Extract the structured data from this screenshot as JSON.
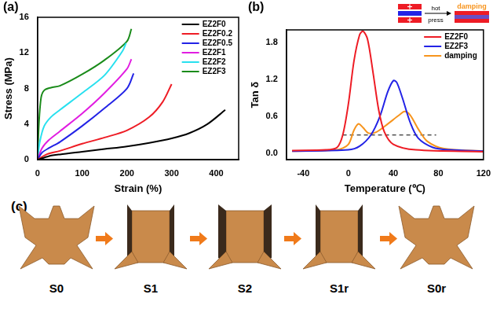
{
  "chart_data": [
    {
      "type": "line",
      "title": "(a)",
      "x_label": "Strain (%)",
      "y_label": "Stress (MPa)",
      "xlim": [
        0,
        450
      ],
      "xticks": [
        0,
        100,
        200,
        300,
        400
      ],
      "ylim": [
        0,
        16
      ],
      "yticks": [
        0,
        4,
        8,
        12,
        16
      ],
      "grid": false,
      "legend": "upper right",
      "series": [
        {
          "name": "EZ2F0",
          "color": "#000000",
          "x": [
            0,
            25,
            50,
            100,
            150,
            200,
            250,
            300,
            340,
            380,
            420
          ],
          "values": [
            0,
            0.4,
            0.6,
            0.9,
            1.2,
            1.5,
            1.9,
            2.4,
            3.0,
            4.0,
            5.6
          ]
        },
        {
          "name": "EZ2F0.2",
          "color": "#ee1c25",
          "x": [
            0,
            20,
            50,
            100,
            150,
            200,
            250,
            280,
            300
          ],
          "values": [
            0,
            0.6,
            1.0,
            1.8,
            2.5,
            3.3,
            4.8,
            6.5,
            8.5
          ]
        },
        {
          "name": "EZ2F0.5",
          "color": "#2323e6",
          "x": [
            0,
            10,
            25,
            50,
            100,
            150,
            200,
            215
          ],
          "values": [
            0,
            0.8,
            1.3,
            2.0,
            3.8,
            5.8,
            8.0,
            9.7
          ]
        },
        {
          "name": "EZ2F1",
          "color": "#e11de1",
          "x": [
            0,
            10,
            25,
            50,
            100,
            150,
            200,
            210
          ],
          "values": [
            0,
            1.3,
            2.2,
            3.2,
            5.2,
            7.5,
            10.2,
            11.3
          ]
        },
        {
          "name": "EZ2F2",
          "color": "#28e0ef",
          "x": [
            0,
            5,
            15,
            30,
            50,
            100,
            150,
            190,
            198
          ],
          "values": [
            0,
            2.0,
            3.8,
            4.8,
            5.6,
            7.5,
            9.5,
            12.2,
            13.1
          ]
        },
        {
          "name": "EZ2F3",
          "color": "#1a8b1a",
          "x": [
            0,
            3,
            8,
            15,
            30,
            50,
            100,
            150,
            200,
            210
          ],
          "values": [
            0,
            4.0,
            7.0,
            7.8,
            8.1,
            8.3,
            9.6,
            11.2,
            13.3,
            14.7
          ]
        }
      ]
    },
    {
      "type": "line",
      "title": "(b)",
      "x_label": "Temperature (℃)",
      "y_label": "Tan δ",
      "xlim": [
        -55,
        120
      ],
      "xticks": [
        -40,
        0,
        40,
        80,
        120
      ],
      "ylim": [
        -0.1,
        2.0
      ],
      "yticks": [
        {
          "value": 0,
          "label": "0.0"
        },
        {
          "value": 0.6,
          "label": "0.6"
        },
        {
          "value": 1.2,
          "label": "1.2"
        },
        {
          "value": 1.8,
          "label": "1.8"
        }
      ],
      "grid": false,
      "legend": "upper right",
      "annotations": [
        "hot",
        "press",
        "damping"
      ],
      "threshold": {
        "y": 0.3,
        "x": [
          -5,
          78
        ],
        "line_style": "dashed",
        "color": "#000000"
      },
      "series": [
        {
          "name": "EZ2F0",
          "color": "#ee1c25",
          "x": [
            -50,
            -20,
            -10,
            -5,
            0,
            5,
            10,
            13,
            17,
            22,
            27,
            32,
            40,
            60,
            120
          ],
          "values": [
            0.05,
            0.06,
            0.1,
            0.3,
            0.8,
            1.5,
            1.92,
            1.98,
            1.85,
            1.3,
            0.7,
            0.35,
            0.15,
            0.06,
            0.03
          ]
        },
        {
          "name": "EZ2F3",
          "color": "#2323e6",
          "x": [
            -50,
            0,
            10,
            20,
            28,
            35,
            40,
            43,
            48,
            55,
            62,
            75,
            90,
            120
          ],
          "values": [
            0.04,
            0.06,
            0.12,
            0.3,
            0.6,
            1.0,
            1.18,
            1.15,
            0.9,
            0.5,
            0.25,
            0.1,
            0.06,
            0.04
          ]
        },
        {
          "name": "damping",
          "color": "#f7941d",
          "x": [
            -50,
            -10,
            0,
            5,
            9,
            13,
            18,
            25,
            35,
            45,
            50,
            55,
            62,
            70,
            85,
            120
          ],
          "values": [
            0.04,
            0.06,
            0.15,
            0.38,
            0.48,
            0.42,
            0.33,
            0.35,
            0.48,
            0.62,
            0.68,
            0.62,
            0.4,
            0.2,
            0.08,
            0.04
          ]
        }
      ]
    }
  ],
  "panel_c": {
    "label": "(c)",
    "stages": [
      "S0",
      "S1",
      "S2",
      "S1r",
      "S0r"
    ]
  }
}
